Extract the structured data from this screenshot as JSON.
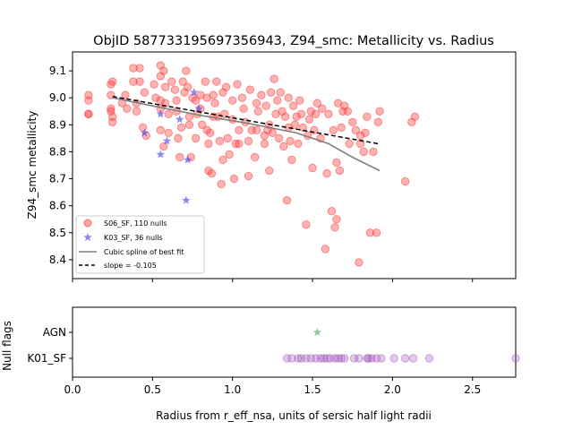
{
  "colors": {
    "s06": "#ff3b3b",
    "k03": "#3a3ae8",
    "spline": "#808080",
    "slope": "#000000",
    "agn": "#5aaa5a",
    "k01": "#9b4fb8"
  },
  "chart_data": [
    {
      "type": "scatter",
      "title": "ObjID 587733195697356943, Z94_smc: Metallicity vs. Radius",
      "xlabel": "",
      "ylabel": "Z94_smc metallicity",
      "xlim": [
        0.0,
        2.77
      ],
      "ylim": [
        8.33,
        9.17
      ],
      "yticks": [
        "8.4",
        "8.5",
        "8.6",
        "8.7",
        "8.8",
        "8.9",
        "9.0",
        "9.1"
      ],
      "legend_position": "lower-left",
      "series": [
        {
          "name": "S06_SF, 110 nulls",
          "marker": "circle",
          "points": [
            [
              0.1,
              9.01
            ],
            [
              0.1,
              8.99
            ],
            [
              0.1,
              8.94
            ],
            [
              0.1,
              8.94
            ],
            [
              0.25,
              9.06
            ],
            [
              0.24,
              9.05
            ],
            [
              0.24,
              9.01
            ],
            [
              0.24,
              8.96
            ],
            [
              0.24,
              8.95
            ],
            [
              0.25,
              8.93
            ],
            [
              0.25,
              8.91
            ],
            [
              0.31,
              8.98
            ],
            [
              0.33,
              9.01
            ],
            [
              0.34,
              8.96
            ],
            [
              0.38,
              9.11
            ],
            [
              0.38,
              9.06
            ],
            [
              0.42,
              9.11
            ],
            [
              0.42,
              9.06
            ],
            [
              0.4,
              8.98
            ],
            [
              0.4,
              8.95
            ],
            [
              0.45,
              9.02
            ],
            [
              0.44,
              8.89
            ],
            [
              0.46,
              8.86
            ],
            [
              0.51,
              9.05
            ],
            [
              0.52,
              9.0
            ],
            [
              0.55,
              9.12
            ],
            [
              0.55,
              9.08
            ],
            [
              0.55,
              8.99
            ],
            [
              0.55,
              8.96
            ],
            [
              0.55,
              8.88
            ],
            [
              0.57,
              8.82
            ],
            [
              0.57,
              9.1
            ],
            [
              0.58,
              9.04
            ],
            [
              0.58,
              8.98
            ],
            [
              0.6,
              8.94
            ],
            [
              0.6,
              8.87
            ],
            [
              0.62,
              9.06
            ],
            [
              0.64,
              9.03
            ],
            [
              0.65,
              8.99
            ],
            [
              0.65,
              8.95
            ],
            [
              0.66,
              8.85
            ],
            [
              0.67,
              8.78
            ],
            [
              0.68,
              8.89
            ],
            [
              0.69,
              9.06
            ],
            [
              0.7,
              9.02
            ],
            [
              0.71,
              9.1
            ],
            [
              0.72,
              9.04
            ],
            [
              0.73,
              8.93
            ],
            [
              0.73,
              8.9
            ],
            [
              0.74,
              8.78
            ],
            [
              0.75,
              9.0
            ],
            [
              0.77,
              8.99
            ],
            [
              0.77,
              8.85
            ],
            [
              0.78,
              8.94
            ],
            [
              0.8,
              9.01
            ],
            [
              0.8,
              8.96
            ],
            [
              0.81,
              8.9
            ],
            [
              0.83,
              9.06
            ],
            [
              0.84,
              8.88
            ],
            [
              0.84,
              9.0
            ],
            [
              0.85,
              8.83
            ],
            [
              0.85,
              8.73
            ],
            [
              0.86,
              8.87
            ],
            [
              0.87,
              8.72
            ],
            [
              0.88,
              9.01
            ],
            [
              0.88,
              8.93
            ],
            [
              0.89,
              8.98
            ],
            [
              0.9,
              9.06
            ],
            [
              0.91,
              8.93
            ],
            [
              0.92,
              8.84
            ],
            [
              0.93,
              8.68
            ],
            [
              0.94,
              8.77
            ],
            [
              0.94,
              9.02
            ],
            [
              0.95,
              8.94
            ],
            [
              0.96,
              9.04
            ],
            [
              0.97,
              8.85
            ],
            [
              0.98,
              8.79
            ],
            [
              1.0,
              8.99
            ],
            [
              1.0,
              8.92
            ],
            [
              1.01,
              8.7
            ],
            [
              1.02,
              8.83
            ],
            [
              1.03,
              9.05
            ],
            [
              1.04,
              8.88
            ],
            [
              1.04,
              8.83
            ],
            [
              1.06,
              9.0
            ],
            [
              1.07,
              8.96
            ],
            [
              1.08,
              8.91
            ],
            [
              1.1,
              8.84
            ],
            [
              1.1,
              8.71
            ],
            [
              1.11,
              9.03
            ],
            [
              1.12,
              8.88
            ],
            [
              1.14,
              8.78
            ],
            [
              1.15,
              8.98
            ],
            [
              1.15,
              8.88
            ],
            [
              1.16,
              8.95
            ],
            [
              1.18,
              9.01
            ],
            [
              1.2,
              8.86
            ],
            [
              1.2,
              8.83
            ],
            [
              1.21,
              8.97
            ],
            [
              1.22,
              8.88
            ],
            [
              1.23,
              8.9
            ],
            [
              1.23,
              8.73
            ],
            [
              1.24,
              9.02
            ],
            [
              1.25,
              8.87
            ],
            [
              1.26,
              9.07
            ],
            [
              1.27,
              8.94
            ],
            [
              1.28,
              8.99
            ],
            [
              1.29,
              8.85
            ],
            [
              1.3,
              9.02
            ],
            [
              1.31,
              8.95
            ],
            [
              1.32,
              8.82
            ],
            [
              1.33,
              8.93
            ],
            [
              1.34,
              8.62
            ],
            [
              1.35,
              8.89
            ],
            [
              1.35,
              9.0
            ],
            [
              1.36,
              8.84
            ],
            [
              1.37,
              8.77
            ],
            [
              1.38,
              8.97
            ],
            [
              1.39,
              8.9
            ],
            [
              1.4,
              8.93
            ],
            [
              1.41,
              8.83
            ],
            [
              1.42,
              8.99
            ],
            [
              1.43,
              8.94
            ],
            [
              1.44,
              8.89
            ],
            [
              1.46,
              8.53
            ],
            [
              1.47,
              8.86
            ],
            [
              1.48,
              8.92
            ],
            [
              1.49,
              8.95
            ],
            [
              1.5,
              8.74
            ],
            [
              1.51,
              8.88
            ],
            [
              1.52,
              8.94
            ],
            [
              1.53,
              8.98
            ],
            [
              1.55,
              8.85
            ],
            [
              1.56,
              8.96
            ],
            [
              1.58,
              8.44
            ],
            [
              1.59,
              8.72
            ],
            [
              1.6,
              8.94
            ],
            [
              1.62,
              8.58
            ],
            [
              1.63,
              8.88
            ],
            [
              1.64,
              8.52
            ],
            [
              1.65,
              8.55
            ],
            [
              1.65,
              8.76
            ],
            [
              1.66,
              8.98
            ],
            [
              1.67,
              8.73
            ],
            [
              1.68,
              8.89
            ],
            [
              1.69,
              8.95
            ],
            [
              1.7,
              8.97
            ],
            [
              1.72,
              8.95
            ],
            [
              1.73,
              8.83
            ],
            [
              1.75,
              8.91
            ],
            [
              1.77,
              8.88
            ],
            [
              1.79,
              8.39
            ],
            [
              1.8,
              8.86
            ],
            [
              1.8,
              8.83
            ],
            [
              1.82,
              8.8
            ],
            [
              1.83,
              8.87
            ],
            [
              1.84,
              8.93
            ],
            [
              1.86,
              8.5
            ],
            [
              1.88,
              8.8
            ],
            [
              1.9,
              8.5
            ],
            [
              1.91,
              8.91
            ],
            [
              1.92,
              8.95
            ],
            [
              2.08,
              8.69
            ],
            [
              2.12,
              8.91
            ],
            [
              2.14,
              8.93
            ]
          ]
        },
        {
          "name": "K03_SF, 36 nulls",
          "marker": "star",
          "points": [
            [
              0.45,
              8.87
            ],
            [
              0.55,
              8.79
            ],
            [
              0.55,
              8.94
            ],
            [
              0.59,
              8.84
            ],
            [
              0.67,
              8.92
            ],
            [
              0.71,
              8.62
            ],
            [
              0.72,
              8.77
            ],
            [
              0.76,
              9.02
            ],
            [
              0.79,
              8.96
            ]
          ]
        },
        {
          "name": "Cubic spline of best fit",
          "marker": "line",
          "points": [
            [
              0.25,
              9.0
            ],
            [
              0.5,
              8.97
            ],
            [
              0.8,
              8.935
            ],
            [
              1.1,
              8.905
            ],
            [
              1.4,
              8.87
            ],
            [
              1.6,
              8.83
            ],
            [
              1.75,
              8.78
            ],
            [
              1.92,
              8.73
            ]
          ]
        },
        {
          "name": "slope = -0.105",
          "marker": "dashed-line",
          "points": [
            [
              0.25,
              9.005
            ],
            [
              1.92,
              8.829
            ]
          ]
        }
      ]
    },
    {
      "type": "scatter",
      "title": "",
      "xlabel": "Radius from r_eff_nsa, units of sersic half light radii",
      "ylabel": "Null flags",
      "xlim": [
        0.0,
        2.77
      ],
      "xticks": [
        "0.0",
        "0.5",
        "1.0",
        "1.5",
        "2.0",
        "2.5"
      ],
      "categories": [
        "AGN",
        "K01_SF"
      ],
      "series": [
        {
          "name": "AGN",
          "marker": "star",
          "x": [
            1.53
          ]
        },
        {
          "name": "K01_SF",
          "marker": "circle",
          "x": [
            1.34,
            1.37,
            1.41,
            1.43,
            1.46,
            1.49,
            1.52,
            1.55,
            1.57,
            1.59,
            1.61,
            1.64,
            1.66,
            1.68,
            1.7,
            1.76,
            1.79,
            1.84,
            1.85,
            1.87,
            1.9,
            1.93,
            2.01,
            2.08,
            2.13,
            2.23,
            2.77
          ]
        }
      ]
    }
  ]
}
